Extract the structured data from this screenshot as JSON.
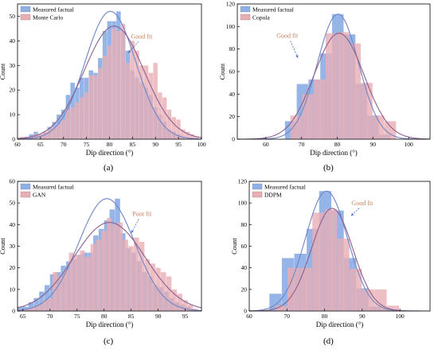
{
  "chart_data": [
    {
      "type": "bar",
      "caption": "(a)",
      "xlabel": "Dip direction (°)",
      "ylabel": "Count",
      "xlim": [
        60,
        100
      ],
      "ylim": [
        0,
        55
      ],
      "xticks": [
        60,
        65,
        70,
        75,
        80,
        85,
        90,
        95,
        100
      ],
      "yticks": [
        0,
        10,
        20,
        30,
        40,
        50
      ],
      "bin_width": 1,
      "legend_position": "top-left",
      "series": [
        {
          "name": "Measured factual",
          "color": "#8fb0e6",
          "x": [
            61,
            62,
            63,
            64,
            65,
            66,
            67,
            68,
            69,
            70,
            71,
            72,
            73,
            74,
            75,
            76,
            77,
            78,
            79,
            80,
            81,
            82,
            83,
            84,
            85,
            86,
            87,
            88,
            89,
            90,
            91,
            92,
            93,
            94,
            95,
            96,
            97,
            98,
            99
          ],
          "values": [
            0,
            1,
            2,
            3,
            2,
            3,
            5,
            7,
            10,
            12,
            18,
            23,
            21,
            25,
            25,
            28,
            27,
            33,
            44,
            48,
            48,
            52,
            44,
            36,
            28,
            25,
            23,
            21,
            18,
            13,
            10,
            7,
            4,
            3,
            2,
            1,
            0,
            0,
            0
          ]
        },
        {
          "name": "Monte Carlo",
          "color": "#e9aeb4",
          "x": [
            61,
            62,
            63,
            64,
            65,
            66,
            67,
            68,
            69,
            70,
            71,
            72,
            73,
            74,
            75,
            76,
            77,
            78,
            79,
            80,
            81,
            82,
            83,
            84,
            85,
            86,
            87,
            88,
            89,
            90,
            91,
            92,
            93,
            94,
            95,
            96,
            97,
            98,
            99
          ],
          "values": [
            1,
            1,
            1,
            2,
            2,
            3,
            4,
            5,
            6,
            8,
            12,
            13,
            15,
            17,
            19,
            26,
            26,
            29,
            34,
            38,
            45,
            44,
            47,
            31,
            40,
            36,
            30,
            30,
            27,
            31,
            19,
            17,
            12,
            9,
            8,
            4,
            3,
            2,
            1
          ]
        }
      ],
      "fit_curves": [
        {
          "series": "Measured factual",
          "mean": 80.2,
          "sd": 5.5,
          "peak": 52,
          "color": "#6f86c8"
        },
        {
          "series": "Monte Carlo",
          "mean": 81.0,
          "sd": 6.5,
          "peak": 46,
          "color": "#8b5f8e"
        }
      ],
      "annotation": {
        "text": "Good fit",
        "x": 87,
        "y": 41,
        "arrow_to": [
          84,
          35
        ],
        "color": "#c9815a",
        "arrow_color": "#5a78c8"
      }
    },
    {
      "type": "bar",
      "caption": "(b)",
      "xlabel": "Dip direction (°)",
      "ylabel": "Count",
      "xlim": [
        52,
        106
      ],
      "ylim": [
        0,
        120
      ],
      "xticks": [
        60,
        70,
        80,
        90,
        100
      ],
      "yticks": [
        0,
        20,
        40,
        60,
        80,
        100,
        120
      ],
      "bin_width": 3.3,
      "legend_position": "top-left",
      "series": [
        {
          "name": "Measured factual",
          "color": "#8fb0e6",
          "x": [
            67,
            70.3,
            73.6,
            76.9,
            80.2,
            83.5,
            86.8,
            90.1,
            93.4
          ],
          "values": [
            16,
            49,
            53,
            76,
            111,
            93,
            49,
            21,
            4
          ]
        },
        {
          "name": "Copula",
          "color": "#e9aeb4",
          "x": [
            68.5,
            71.8,
            75.1,
            78.4,
            81.7,
            85,
            88.3,
            91.6,
            94.9
          ],
          "values": [
            21,
            40,
            53,
            94,
            95,
            85,
            50,
            21,
            16
          ]
        }
      ],
      "fit_curves": [
        {
          "series": "Measured factual",
          "mean": 80.2,
          "sd": 5.8,
          "peak": 111,
          "color": "#6f86c8"
        },
        {
          "series": "Copula",
          "mean": 80.5,
          "sd": 7.0,
          "peak": 94,
          "color": "#8b5f8e"
        }
      ],
      "annotation": {
        "text": "Good fit",
        "x": 66,
        "y": 90,
        "arrow_to": [
          69,
          72
        ],
        "color": "#c9815a",
        "arrow_color": "#5a78c8"
      }
    },
    {
      "type": "bar",
      "caption": "(c)",
      "xlabel": "Dip direction (°)",
      "ylabel": "Count",
      "xlim": [
        64,
        98
      ],
      "ylim": [
        0,
        60
      ],
      "xticks": [
        65,
        70,
        75,
        80,
        85,
        90,
        95
      ],
      "yticks": [
        0,
        10,
        20,
        30,
        40,
        50,
        60
      ],
      "bin_width": 1,
      "legend_position": "top-left",
      "series": [
        {
          "name": "Measured factual",
          "color": "#8fb0e6",
          "x": [
            64.5,
            65.5,
            66.5,
            67.5,
            68.5,
            69.5,
            70.5,
            71.5,
            72.5,
            73.5,
            74.5,
            75.5,
            76.5,
            77.5,
            78.5,
            79.5,
            80.5,
            81.5,
            82.5,
            83.5,
            84.5,
            85.5,
            86.5,
            87.5,
            88.5,
            89.5,
            90.5,
            91.5,
            92.5,
            93.5,
            94.5,
            95.5,
            96.5
          ],
          "values": [
            2,
            2,
            4,
            6,
            9,
            12,
            17,
            18,
            21,
            23,
            24,
            26,
            27,
            27,
            35,
            38,
            42,
            47,
            52,
            36,
            29,
            27,
            23,
            18,
            16,
            12,
            11,
            9,
            6,
            4,
            3,
            2,
            1
          ]
        },
        {
          "name": "GAN",
          "color": "#e9aeb4",
          "x": [
            65,
            66,
            67,
            68,
            69,
            70,
            71,
            72,
            73,
            74,
            75,
            76,
            77,
            78,
            79,
            80,
            81,
            82,
            83,
            84,
            85,
            86,
            87,
            88,
            89,
            90,
            91,
            92,
            93,
            94,
            95,
            96,
            97
          ],
          "values": [
            1,
            1,
            2,
            3,
            5,
            6,
            18,
            16,
            19,
            27,
            26,
            28,
            25,
            31,
            33,
            37,
            43,
            40,
            41,
            33,
            30,
            34,
            32,
            24,
            22,
            20,
            18,
            16,
            10,
            8,
            5,
            3,
            1
          ]
        }
      ],
      "fit_curves": [
        {
          "series": "Measured factual",
          "mean": 80.5,
          "sd": 5.2,
          "peak": 52,
          "color": "#6f86c8"
        },
        {
          "series": "GAN",
          "mean": 81.0,
          "sd": 6.6,
          "peak": 41,
          "color": "#8b5f8e"
        }
      ],
      "annotation": {
        "text": "Poor fit",
        "x": 87,
        "y": 44,
        "arrow_to": [
          85,
          36
        ],
        "color": "#c9815a",
        "arrow_color": "#5a78c8"
      }
    },
    {
      "type": "bar",
      "caption": "(d)",
      "xlabel": "Dip direction (°)",
      "ylabel": "Count",
      "xlim": [
        60,
        108
      ],
      "ylim": [
        0,
        120
      ],
      "xticks": [
        60,
        70,
        80,
        90,
        100
      ],
      "yticks": [
        0,
        20,
        40,
        60,
        80,
        100,
        120
      ],
      "bin_width": 3.3,
      "legend_position": "top-left",
      "series": [
        {
          "name": "Measured factual",
          "color": "#8fb0e6",
          "x": [
            67,
            70.3,
            73.6,
            76.9,
            80.2,
            83.5,
            86.8,
            90.1,
            93.4,
            96.7
          ],
          "values": [
            16,
            49,
            53,
            76,
            111,
            93,
            49,
            21,
            4,
            2
          ]
        },
        {
          "name": "DDPM",
          "color": "#e9aeb4",
          "x": [
            68.5,
            71.8,
            75.1,
            78.4,
            81.7,
            85,
            88.3,
            91.6,
            94.9,
            98.2
          ],
          "values": [
            5,
            40,
            40,
            91,
            94,
            67,
            39,
            20,
            20,
            5
          ]
        }
      ],
      "fit_curves": [
        {
          "series": "Measured factual",
          "mean": 80.5,
          "sd": 5.6,
          "peak": 111,
          "color": "#6f86c8"
        },
        {
          "series": "DDPM",
          "mean": 82.0,
          "sd": 5.5,
          "peak": 95,
          "color": "#8b5f8e"
        }
      ],
      "annotation": {
        "text": "Good fit",
        "x": 90,
        "y": 98,
        "arrow_to": [
          87,
          88
        ],
        "color": "#c9815a",
        "arrow_color": "#5a78c8"
      }
    }
  ]
}
